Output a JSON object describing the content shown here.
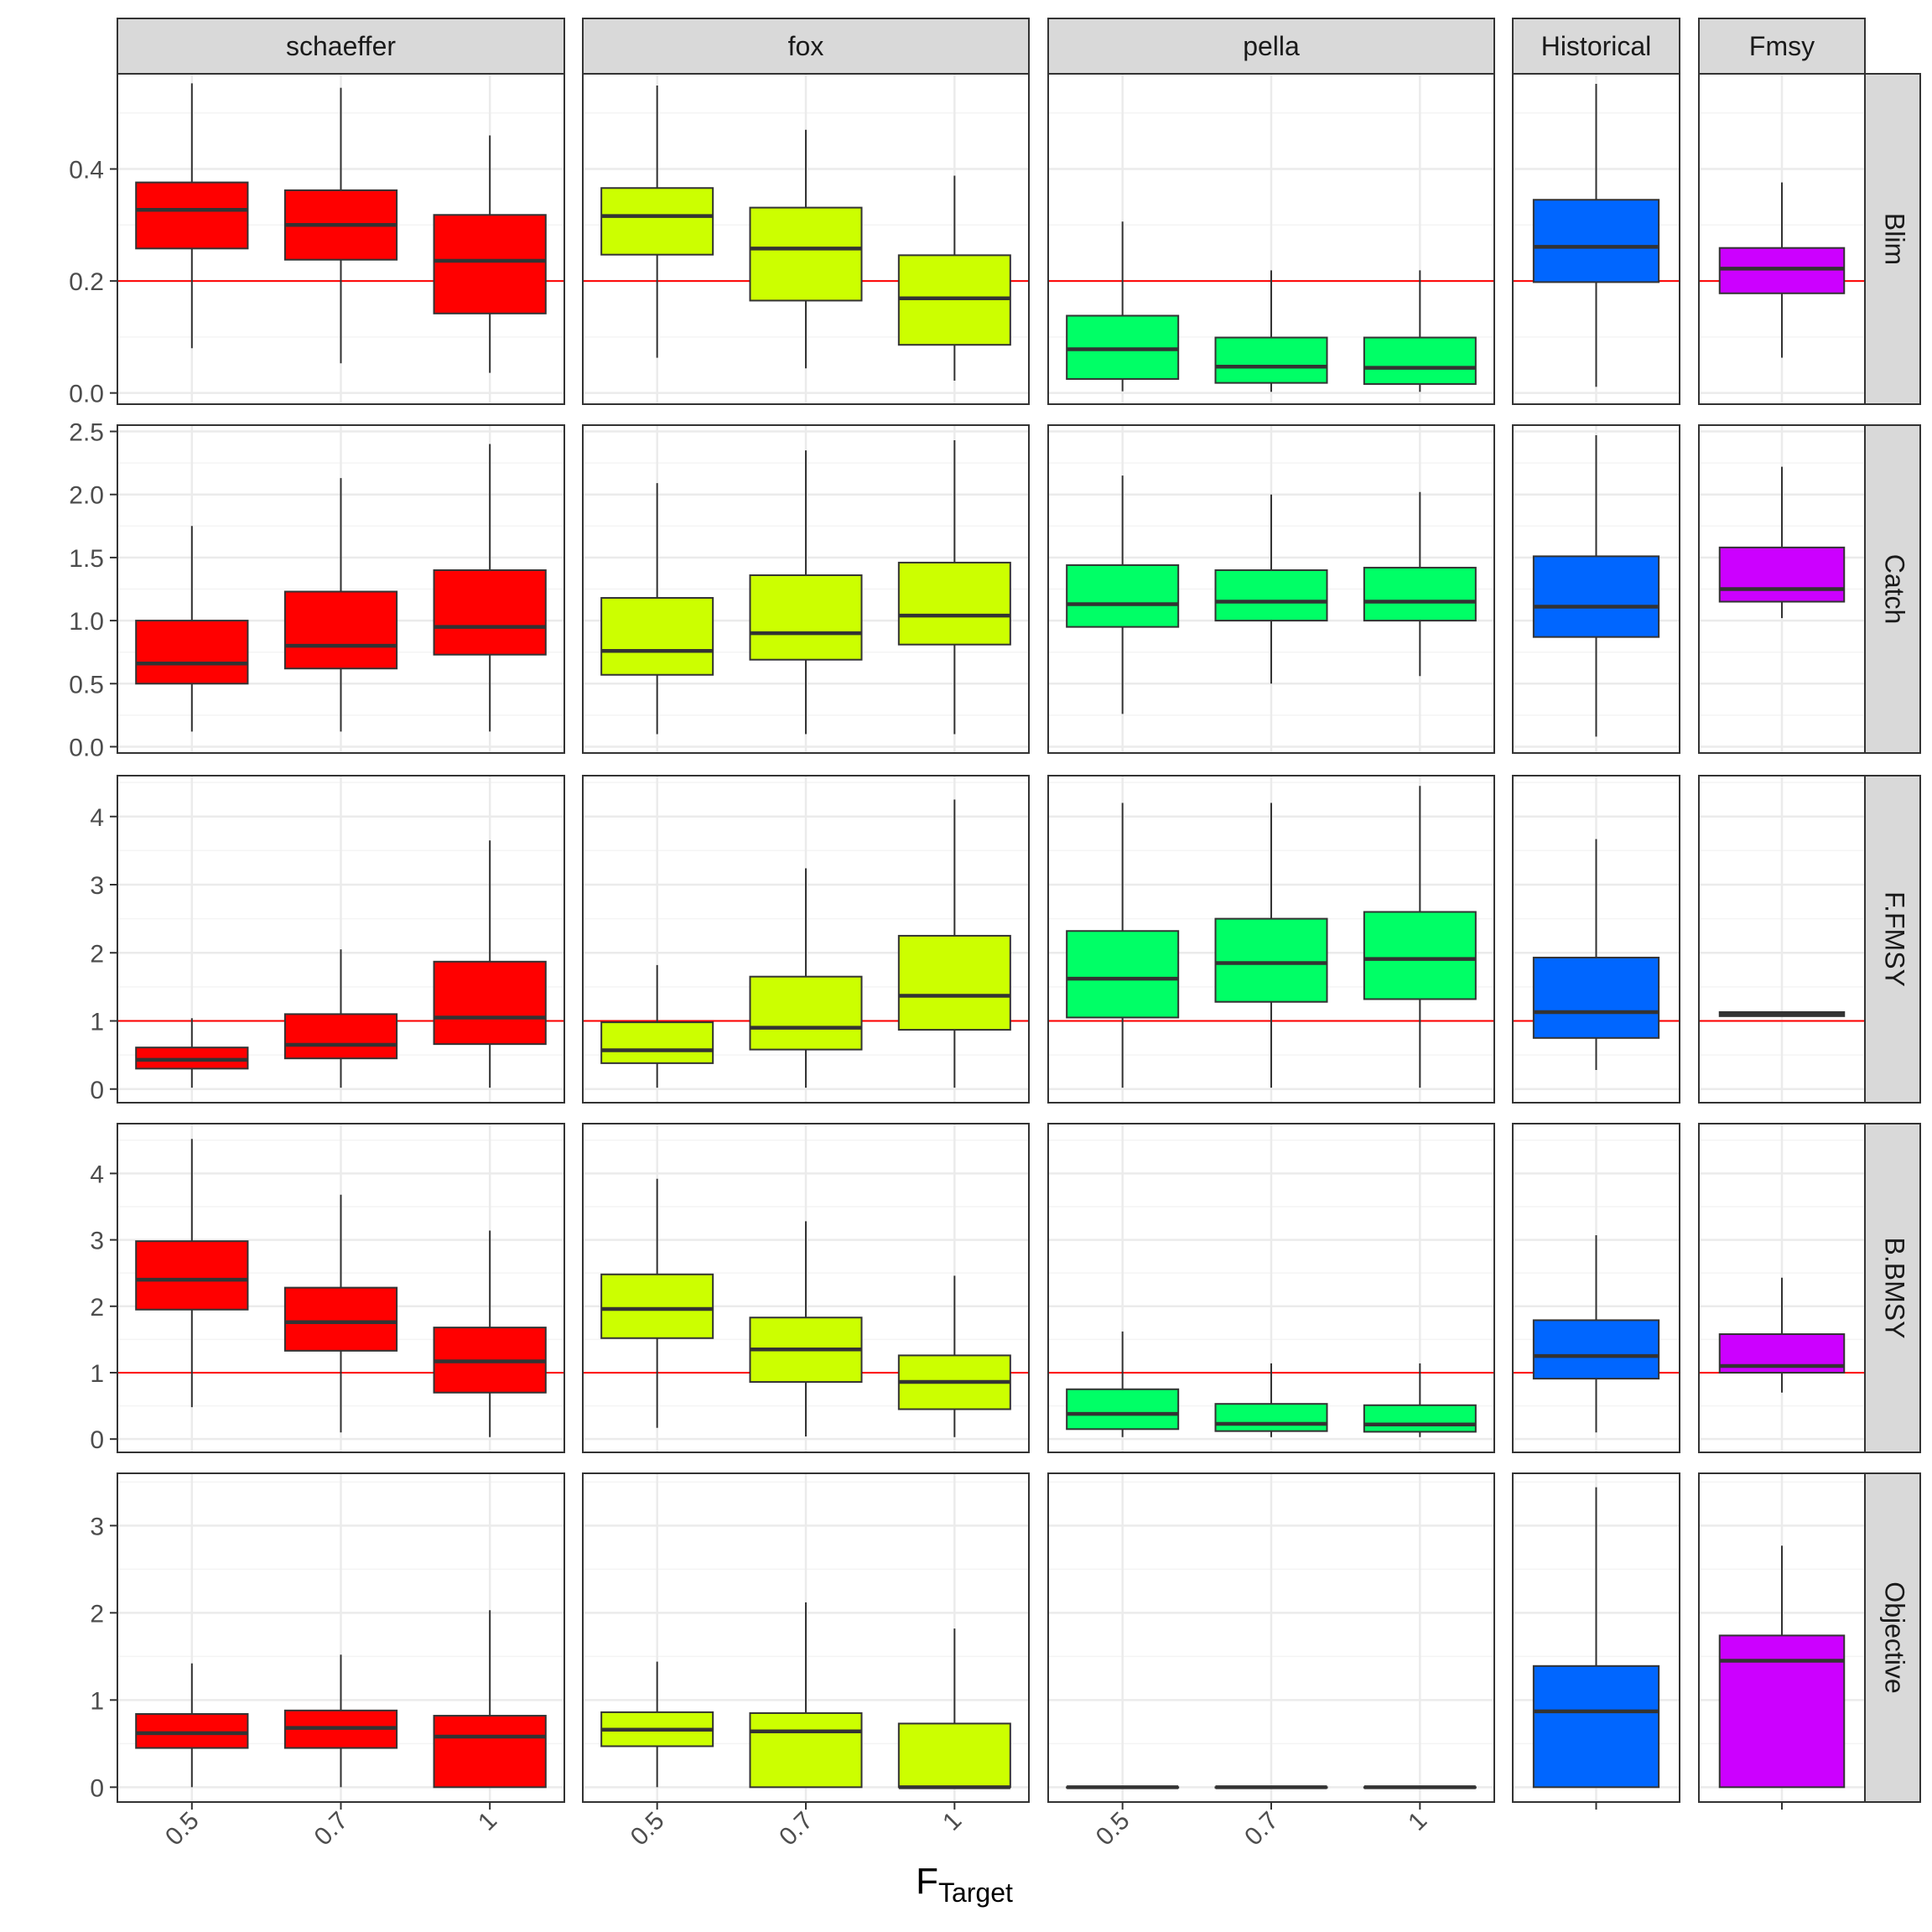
{
  "chart_data": {
    "type": "boxplot",
    "layout": "facet-grid",
    "xlabel": "F",
    "xlabel_subscript": "Target",
    "columns": [
      "schaeffer",
      "fox",
      "pella",
      "Historical",
      "Fmsy"
    ],
    "column_categories": {
      "schaeffer": [
        "0.5",
        "0.7",
        "1"
      ],
      "fox": [
        "0.5",
        "0.7",
        "1"
      ],
      "pella": [
        "0.5",
        "0.7",
        "1"
      ],
      "Historical": [
        ""
      ],
      "Fmsy": [
        ""
      ]
    },
    "column_colors": {
      "schaeffer": "#FF0000",
      "fox": "#CCFF00",
      "pella": "#00FF66",
      "Historical": "#0066FF",
      "Fmsy": "#CC00FF"
    },
    "rows": [
      {
        "name": "Blim",
        "ylim": [
          -0.02,
          0.57
        ],
        "yticks": [
          0.0,
          0.2,
          0.4
        ],
        "ytick_labels": [
          "0.0",
          "0.2",
          "0.4"
        ],
        "reference_line": 0.2,
        "boxes": {
          "schaeffer": [
            [
              0.08,
              0.258,
              0.327,
              0.376,
              0.553
            ],
            [
              0.053,
              0.238,
              0.3,
              0.362,
              0.545
            ],
            [
              0.036,
              0.142,
              0.236,
              0.318,
              0.46
            ]
          ],
          "fox": [
            [
              0.063,
              0.247,
              0.316,
              0.366,
              0.549
            ],
            [
              0.044,
              0.165,
              0.258,
              0.331,
              0.47
            ],
            [
              0.022,
              0.086,
              0.169,
              0.246,
              0.388
            ]
          ],
          "pella": [
            [
              0.003,
              0.025,
              0.078,
              0.138,
              0.306
            ],
            [
              0.002,
              0.018,
              0.047,
              0.099,
              0.219
            ],
            [
              0.002,
              0.016,
              0.045,
              0.099,
              0.219
            ]
          ],
          "Historical": [
            [
              0.011,
              0.198,
              0.261,
              0.345,
              0.552
            ]
          ],
          "Fmsy": [
            [
              0.063,
              0.178,
              0.222,
              0.259,
              0.376
            ]
          ]
        }
      },
      {
        "name": "Catch",
        "ylim": [
          -0.05,
          2.55
        ],
        "yticks": [
          0.0,
          0.5,
          1.0,
          1.5,
          2.0,
          2.5
        ],
        "ytick_labels": [
          "0.0",
          "0.5",
          "1.0",
          "1.5",
          "2.0",
          "2.5"
        ],
        "reference_line": null,
        "boxes": {
          "schaeffer": [
            [
              0.12,
              0.5,
              0.66,
              1.0,
              1.75
            ],
            [
              0.12,
              0.62,
              0.8,
              1.23,
              2.13
            ],
            [
              0.12,
              0.73,
              0.95,
              1.4,
              2.4
            ]
          ],
          "fox": [
            [
              0.1,
              0.57,
              0.76,
              1.18,
              2.09
            ],
            [
              0.1,
              0.69,
              0.9,
              1.36,
              2.35
            ],
            [
              0.1,
              0.81,
              1.04,
              1.46,
              2.43
            ]
          ],
          "pella": [
            [
              0.26,
              0.95,
              1.13,
              1.44,
              2.15
            ],
            [
              0.5,
              1.0,
              1.15,
              1.4,
              2.0
            ],
            [
              0.56,
              1.0,
              1.15,
              1.42,
              2.02
            ]
          ],
          "Historical": [
            [
              0.08,
              0.87,
              1.11,
              1.51,
              2.47
            ]
          ],
          "Fmsy": [
            [
              1.02,
              1.15,
              1.25,
              1.58,
              2.22
            ]
          ]
        }
      },
      {
        "name": "F.FMSY",
        "ylim": [
          -0.2,
          4.6
        ],
        "yticks": [
          0,
          1,
          2,
          3,
          4
        ],
        "ytick_labels": [
          "0",
          "1",
          "2",
          "3",
          "4"
        ],
        "reference_line": 1,
        "boxes": {
          "schaeffer": [
            [
              0.02,
              0.3,
              0.43,
              0.61,
              1.04
            ],
            [
              0.02,
              0.45,
              0.65,
              1.1,
              2.05
            ],
            [
              0.02,
              0.66,
              1.05,
              1.87,
              3.65
            ]
          ],
          "fox": [
            [
              0.02,
              0.38,
              0.57,
              0.98,
              1.82
            ],
            [
              0.02,
              0.58,
              0.9,
              1.65,
              3.24
            ],
            [
              0.02,
              0.87,
              1.37,
              2.25,
              4.25
            ]
          ],
          "pella": [
            [
              0.02,
              1.05,
              1.62,
              2.32,
              4.2
            ],
            [
              0.02,
              1.28,
              1.85,
              2.5,
              4.2
            ],
            [
              0.02,
              1.32,
              1.91,
              2.6,
              4.45
            ]
          ],
          "Historical": [
            [
              0.28,
              0.75,
              1.13,
              1.93,
              3.67
            ]
          ],
          "Fmsy": [
            [
              1.07,
              1.07,
              1.1,
              1.13,
              1.13
            ]
          ]
        }
      },
      {
        "name": "B.BMSY",
        "ylim": [
          -0.2,
          4.75
        ],
        "yticks": [
          0,
          1,
          2,
          3,
          4
        ],
        "ytick_labels": [
          "0",
          "1",
          "2",
          "3",
          "4"
        ],
        "reference_line": 1,
        "boxes": {
          "schaeffer": [
            [
              0.48,
              1.95,
              2.4,
              2.98,
              4.52
            ],
            [
              0.1,
              1.33,
              1.76,
              2.28,
              3.68
            ],
            [
              0.03,
              0.7,
              1.17,
              1.68,
              3.14
            ]
          ],
          "fox": [
            [
              0.17,
              1.52,
              1.96,
              2.48,
              3.92
            ],
            [
              0.04,
              0.86,
              1.35,
              1.83,
              3.28
            ],
            [
              0.03,
              0.45,
              0.86,
              1.26,
              2.46
            ]
          ],
          "pella": [
            [
              0.03,
              0.15,
              0.38,
              0.75,
              1.62
            ],
            [
              0.03,
              0.12,
              0.23,
              0.53,
              1.14
            ],
            [
              0.03,
              0.11,
              0.22,
              0.51,
              1.14
            ]
          ],
          "Historical": [
            [
              0.1,
              0.91,
              1.25,
              1.79,
              3.07
            ]
          ],
          "Fmsy": [
            [
              0.7,
              1.0,
              1.1,
              1.58,
              2.43
            ]
          ]
        }
      },
      {
        "name": "Objective",
        "ylim": [
          -0.17,
          3.6
        ],
        "yticks": [
          0,
          1,
          2,
          3
        ],
        "ytick_labels": [
          "0",
          "1",
          "2",
          "3"
        ],
        "reference_line": null,
        "boxes": {
          "schaeffer": [
            [
              0.0,
              0.45,
              0.62,
              0.84,
              1.42
            ],
            [
              0.0,
              0.45,
              0.68,
              0.88,
              1.52
            ],
            [
              0.0,
              0.0,
              0.58,
              0.82,
              2.03
            ]
          ],
          "fox": [
            [
              0.0,
              0.47,
              0.66,
              0.86,
              1.44
            ],
            [
              0.0,
              0.0,
              0.64,
              0.85,
              2.12
            ],
            [
              0.0,
              0.0,
              0.0,
              0.73,
              1.82
            ]
          ],
          "pella": [
            [
              0.0,
              0.0,
              0.0,
              0.0,
              0.0
            ],
            [
              0.0,
              0.0,
              0.0,
              0.0,
              0.0
            ],
            [
              0.0,
              0.0,
              0.0,
              0.0,
              0.0
            ]
          ],
          "Historical": [
            [
              0.0,
              0.0,
              0.87,
              1.39,
              3.44
            ]
          ],
          "Fmsy": [
            [
              0.0,
              0.0,
              1.45,
              1.74,
              2.77
            ]
          ]
        }
      }
    ],
    "styles": {
      "strip_fill": "#D9D9D9",
      "grid_major": "#EBEBEB",
      "grid_minor": "#F4F4F4",
      "reference_line_color": "#FF0000",
      "median_color": "#333333",
      "whisker_color": "#333333",
      "panel_border": "#333333"
    }
  }
}
